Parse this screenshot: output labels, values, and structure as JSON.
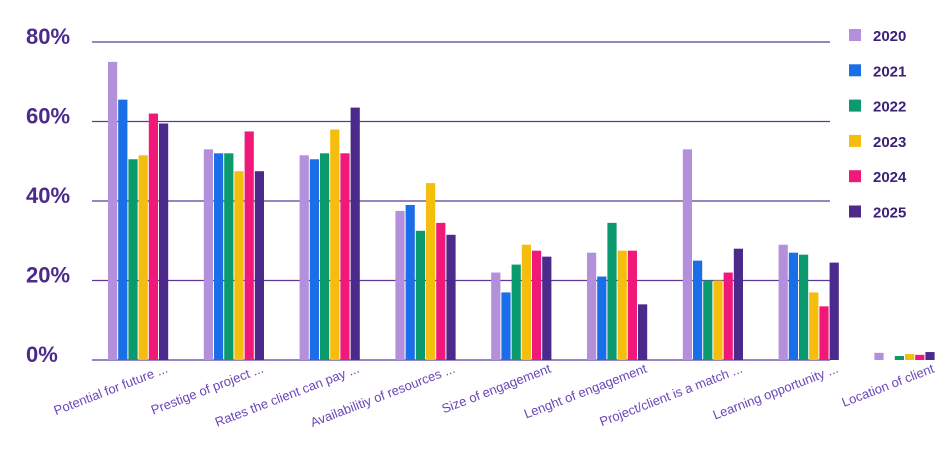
{
  "chart_data": {
    "type": "bar",
    "ylim": [
      0,
      80
    ],
    "yticks": [
      "0%",
      "20%",
      "40%",
      "60%",
      "80%"
    ],
    "ytick_values": [
      0,
      20,
      40,
      60,
      80
    ],
    "grid": true,
    "legend_position": "right",
    "categories": [
      "Potential for future ...",
      "Prestige of project ...",
      "Rates the client can pay ...",
      "Availabilitiy of resources ...",
      "Size of engagement",
      "Lenght of engagement",
      "Project/client is a match  ...",
      "Learning opportunity  ...",
      "Location of client"
    ],
    "series": [
      {
        "name": "2020",
        "color": "#b48fdc",
        "values": [
          75,
          53,
          51.5,
          37.5,
          22,
          27,
          53,
          29,
          1.8
        ]
      },
      {
        "name": "2021",
        "color": "#1a6fe8",
        "values": [
          65.5,
          52,
          50.5,
          39,
          17,
          21,
          25,
          27,
          0
        ]
      },
      {
        "name": "2022",
        "color": "#0a9a6e",
        "values": [
          50.5,
          52,
          52,
          32.5,
          24,
          34.5,
          20,
          26.5,
          1
        ]
      },
      {
        "name": "2023",
        "color": "#f5bd0e",
        "values": [
          51.5,
          47.5,
          58,
          44.5,
          29,
          27.5,
          20,
          17,
          1.5
        ]
      },
      {
        "name": "2024",
        "color": "#f0197a",
        "values": [
          62,
          57.5,
          52,
          34.5,
          27.5,
          27.5,
          22,
          13.5,
          1.3
        ]
      },
      {
        "name": "2025",
        "color": "#4b2a8c",
        "values": [
          59.5,
          47.5,
          63.5,
          31.5,
          26,
          14,
          28,
          24.5,
          2
        ]
      }
    ]
  }
}
